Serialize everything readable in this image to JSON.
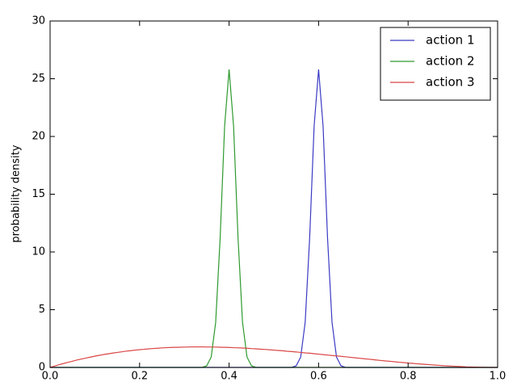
{
  "chart_data": {
    "type": "line",
    "ylabel": "probability density",
    "x": [
      0,
      0.01,
      0.02,
      0.03,
      0.04,
      0.05,
      0.06,
      0.07,
      0.08,
      0.09,
      0.1,
      0.11,
      0.12,
      0.13,
      0.14,
      0.15,
      0.16,
      0.17,
      0.18,
      0.19,
      0.2,
      0.21,
      0.22,
      0.23,
      0.24,
      0.25,
      0.26,
      0.27,
      0.28,
      0.29,
      0.3,
      0.31,
      0.32,
      0.33,
      0.34,
      0.35,
      0.36,
      0.37,
      0.38,
      0.39,
      0.4,
      0.41,
      0.42,
      0.43,
      0.44,
      0.45,
      0.46,
      0.47,
      0.48,
      0.49,
      0.5,
      0.51,
      0.52,
      0.53,
      0.54,
      0.55,
      0.56,
      0.57,
      0.58,
      0.59,
      0.6,
      0.61,
      0.62,
      0.63,
      0.64,
      0.65,
      0.66,
      0.67,
      0.68,
      0.69,
      0.7,
      0.71,
      0.72,
      0.73,
      0.74,
      0.75,
      0.76,
      0.77,
      0.78,
      0.79,
      0.8,
      0.81,
      0.82,
      0.83,
      0.84,
      0.85,
      0.86,
      0.87,
      0.88,
      0.89,
      0.9,
      0.91,
      0.92,
      0.93,
      0.94,
      0.95,
      0.96,
      0.97,
      0.98,
      0.99,
      1
    ],
    "series": [
      {
        "name": "action 1",
        "color": "#3a3ac4",
        "values": [
          0,
          0,
          0,
          0,
          0,
          0,
          0,
          0,
          0,
          0,
          0,
          0,
          0,
          0,
          0,
          0,
          0,
          0,
          0,
          0,
          0,
          0,
          0,
          0,
          0,
          0,
          0,
          0,
          0,
          0,
          0,
          0,
          0,
          0,
          0,
          0,
          0,
          0,
          0,
          0,
          0,
          0,
          0,
          0,
          0,
          0,
          0,
          0,
          0,
          0,
          0,
          0,
          0,
          0,
          0,
          0.14,
          0.9,
          3.9,
          11.2,
          20.9,
          25.8,
          20.9,
          11.2,
          3.9,
          0.9,
          0.14,
          0,
          0,
          0,
          0,
          0,
          0,
          0,
          0,
          0,
          0,
          0,
          0,
          0,
          0,
          0,
          0,
          0,
          0,
          0,
          0,
          0,
          0,
          0,
          0,
          0,
          0,
          0,
          0,
          0,
          0,
          0,
          0,
          0,
          0,
          0
        ]
      },
      {
        "name": "action 2",
        "color": "#2e9a2e",
        "values": [
          0,
          0,
          0,
          0,
          0,
          0,
          0,
          0,
          0,
          0,
          0,
          0,
          0,
          0,
          0,
          0,
          0,
          0,
          0,
          0,
          0,
          0,
          0,
          0,
          0,
          0,
          0,
          0,
          0,
          0,
          0,
          0,
          0,
          0,
          0,
          0.14,
          0.9,
          3.9,
          11.2,
          20.9,
          25.8,
          20.9,
          11.2,
          3.9,
          0.9,
          0.14,
          0,
          0,
          0,
          0,
          0,
          0,
          0,
          0,
          0,
          0,
          0,
          0,
          0,
          0,
          0,
          0,
          0,
          0,
          0,
          0,
          0,
          0,
          0,
          0,
          0,
          0,
          0,
          0,
          0,
          0,
          0,
          0,
          0,
          0,
          0,
          0,
          0,
          0,
          0,
          0,
          0,
          0,
          0,
          0,
          0,
          0,
          0,
          0,
          0,
          0,
          0,
          0,
          0,
          0,
          0
        ]
      },
      {
        "name": "action 3",
        "color": "#d94545",
        "values": [
          0,
          0.12,
          0.23,
          0.34,
          0.44,
          0.54,
          0.64,
          0.73,
          0.81,
          0.89,
          0.97,
          1.05,
          1.12,
          1.18,
          1.24,
          1.3,
          1.35,
          1.41,
          1.45,
          1.5,
          1.54,
          1.57,
          1.61,
          1.64,
          1.66,
          1.69,
          1.71,
          1.73,
          1.74,
          1.75,
          1.76,
          1.77,
          1.78,
          1.78,
          1.78,
          1.77,
          1.77,
          1.76,
          1.75,
          1.74,
          1.73,
          1.71,
          1.7,
          1.68,
          1.66,
          1.63,
          1.61,
          1.58,
          1.56,
          1.53,
          1.5,
          1.47,
          1.44,
          1.4,
          1.37,
          1.34,
          1.3,
          1.26,
          1.23,
          1.19,
          1.15,
          1.11,
          1.07,
          1.03,
          1,
          0.96,
          0.92,
          0.88,
          0.84,
          0.8,
          0.76,
          0.72,
          0.68,
          0.64,
          0.6,
          0.56,
          0.53,
          0.49,
          0.45,
          0.42,
          0.38,
          0.35,
          0.32,
          0.29,
          0.26,
          0.23,
          0.2,
          0.18,
          0.15,
          0.13,
          0.11,
          0.09,
          0.07,
          0.05,
          0.04,
          0.03,
          0.02,
          0.01,
          0,
          0,
          0
        ]
      }
    ],
    "xlim": [
      0,
      1
    ],
    "xticks": [
      {
        "value": 0,
        "label": "0.0"
      },
      0.2,
      0.4,
      0.6,
      0.8,
      {
        "value": 1,
        "label": "1.0"
      }
    ],
    "ylim": [
      0,
      30
    ],
    "yticks": [
      0,
      5,
      10,
      15,
      20,
      25,
      30
    ],
    "legend": "upper right"
  }
}
